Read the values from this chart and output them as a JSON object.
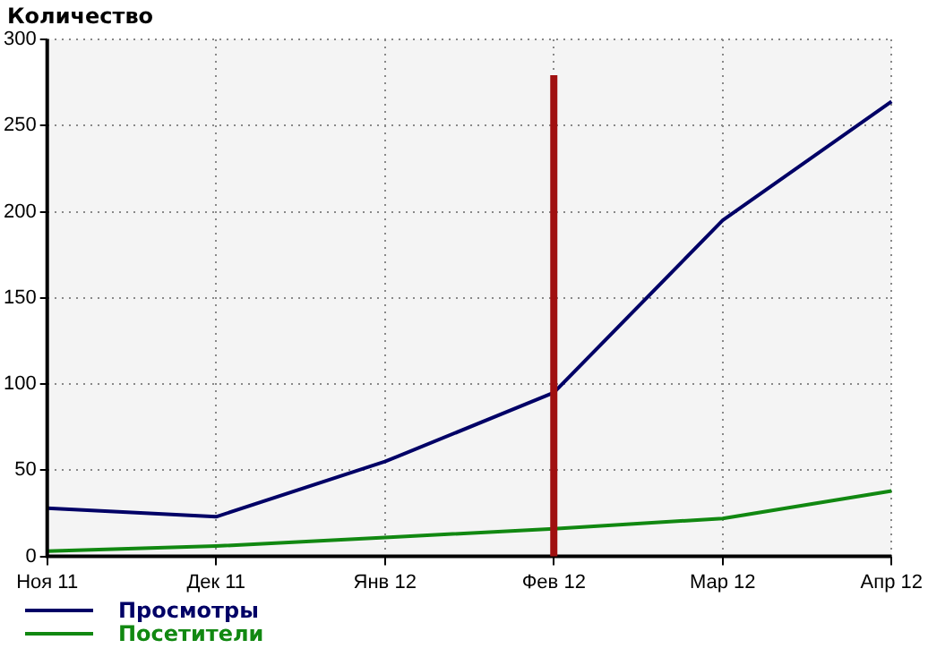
{
  "chart_data": {
    "type": "line",
    "ylabel": "Количество",
    "categories": [
      "Ноя 11",
      "Дек 11",
      "Янв 12",
      "Фев 12",
      "Мар 12",
      "Апр 12"
    ],
    "series": [
      {
        "name": "Просмотры",
        "color": "#000066",
        "values": [
          28,
          23,
          55,
          95,
          195,
          264
        ]
      },
      {
        "name": "Посетители",
        "color": "#118811",
        "values": [
          3,
          6,
          11,
          16,
          22,
          38
        ]
      }
    ],
    "ylim": [
      0,
      300
    ],
    "yticks": [
      0,
      50,
      100,
      150,
      200,
      250,
      300
    ],
    "grid": true,
    "legend": "bottom left",
    "marker": "none",
    "line_style": "solid",
    "ref_lines": [
      {
        "axis": "x",
        "value": "Фев 12",
        "color": "#a01010"
      }
    ]
  }
}
